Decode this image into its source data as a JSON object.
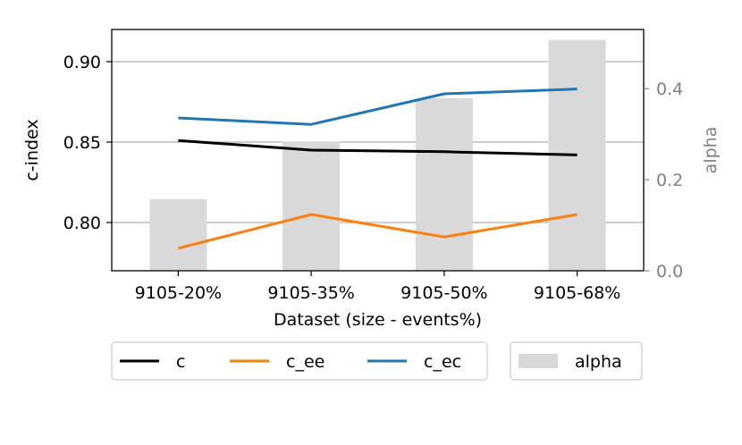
{
  "chart_data": {
    "type": "line",
    "categories": [
      "9105-20%",
      "9105-35%",
      "9105-50%",
      "9105-68%"
    ],
    "xlabel": "Dataset (size - events%)",
    "ylabel": "c-index",
    "ylabel_right": "alpha",
    "ylim": [
      0.77,
      0.92
    ],
    "yticks": [
      "0.80",
      "0.85",
      "0.90"
    ],
    "ylim_right": [
      0.0,
      0.53
    ],
    "yticks_right": [
      "0.0",
      "0.2",
      "0.4"
    ],
    "grid": "y",
    "colors": {
      "c": "#000000",
      "c_ee": "#ff7f0e",
      "c_ec": "#1f77b4",
      "alpha": "#d9d9d9"
    },
    "series": [
      {
        "name": "c",
        "type": "line",
        "axis": "left",
        "values": [
          0.851,
          0.845,
          0.844,
          0.842
        ]
      },
      {
        "name": "c_ee",
        "type": "line",
        "axis": "left",
        "values": [
          0.784,
          0.805,
          0.791,
          0.805
        ]
      },
      {
        "name": "c_ec",
        "type": "line",
        "axis": "left",
        "values": [
          0.865,
          0.861,
          0.88,
          0.883
        ]
      }
    ],
    "bars": {
      "name": "alpha",
      "axis": "right",
      "values": [
        0.157,
        0.284,
        0.379,
        0.507
      ]
    },
    "legend": [
      {
        "group": "lines",
        "entries": [
          "c",
          "c_ee",
          "c_ec"
        ]
      },
      {
        "group": "bars",
        "entries": [
          "alpha"
        ]
      }
    ],
    "legend_placement": "below"
  }
}
